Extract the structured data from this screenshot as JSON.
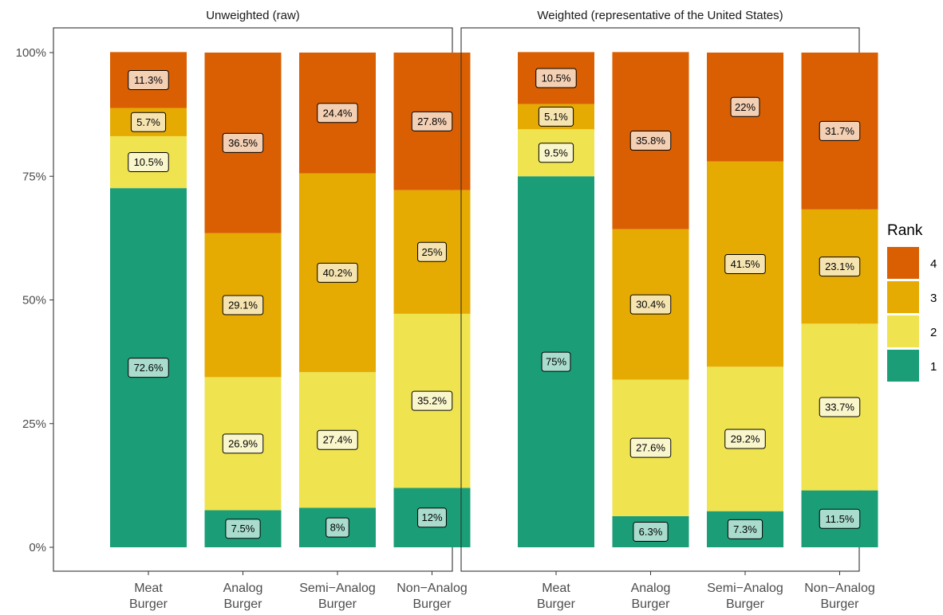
{
  "chart_data": {
    "type": "bar",
    "stacked": true,
    "ylim": [
      0,
      100
    ],
    "yticks": [
      "0%",
      "25%",
      "50%",
      "75%",
      "100%"
    ],
    "ytick_values": [
      0,
      25,
      50,
      75,
      100
    ],
    "categories": [
      [
        "Meat",
        "Burger"
      ],
      [
        "Analog",
        "Burger"
      ],
      [
        "Semi−Analog",
        "Burger"
      ],
      [
        "Non−Analog",
        "Burger"
      ]
    ],
    "legend": {
      "title": "Rank",
      "position": "right",
      "entries": [
        {
          "label": "4",
          "color": "#D95F02"
        },
        {
          "label": "3",
          "color": "#E6AB02"
        },
        {
          "label": "2",
          "color": "#EFE350"
        },
        {
          "label": "1",
          "color": "#1B9E77"
        }
      ]
    },
    "series_colors": {
      "1": "#1B9E77",
      "2": "#EFE350",
      "3": "#E6AB02",
      "4": "#D95F02"
    },
    "label_fills": {
      "1": "#A9DCCD",
      "2": "#FAF6CC",
      "3": "#F6E4B0",
      "4": "#F3CFB4"
    },
    "panels": [
      {
        "title": "Unweighted (raw)",
        "series": [
          {
            "name": "1",
            "values": [
              72.6,
              7.5,
              8,
              12
            ],
            "labels": [
              "72.6%",
              "7.5%",
              "8%",
              "12%"
            ]
          },
          {
            "name": "2",
            "values": [
              10.5,
              26.9,
              27.4,
              35.2
            ],
            "labels": [
              "10.5%",
              "26.9%",
              "27.4%",
              "35.2%"
            ]
          },
          {
            "name": "3",
            "values": [
              5.7,
              29.1,
              40.2,
              25
            ],
            "labels": [
              "5.7%",
              "29.1%",
              "40.2%",
              "25%"
            ]
          },
          {
            "name": "4",
            "values": [
              11.3,
              36.5,
              24.4,
              27.8
            ],
            "labels": [
              "11.3%",
              "36.5%",
              "24.4%",
              "27.8%"
            ]
          }
        ]
      },
      {
        "title": "Weighted (representative of the United States)",
        "series": [
          {
            "name": "1",
            "values": [
              75,
              6.3,
              7.3,
              11.5
            ],
            "labels": [
              "75%",
              "6.3%",
              "7.3%",
              "11.5%"
            ]
          },
          {
            "name": "2",
            "values": [
              9.5,
              27.6,
              29.2,
              33.7
            ],
            "labels": [
              "9.5%",
              "27.6%",
              "29.2%",
              "33.7%"
            ]
          },
          {
            "name": "3",
            "values": [
              5.1,
              30.4,
              41.5,
              23.1
            ],
            "labels": [
              "5.1%",
              "30.4%",
              "41.5%",
              "23.1%"
            ]
          },
          {
            "name": "4",
            "values": [
              10.5,
              35.8,
              22,
              31.7
            ],
            "labels": [
              "10.5%",
              "35.8%",
              "22%",
              "31.7%"
            ]
          }
        ]
      }
    ]
  }
}
